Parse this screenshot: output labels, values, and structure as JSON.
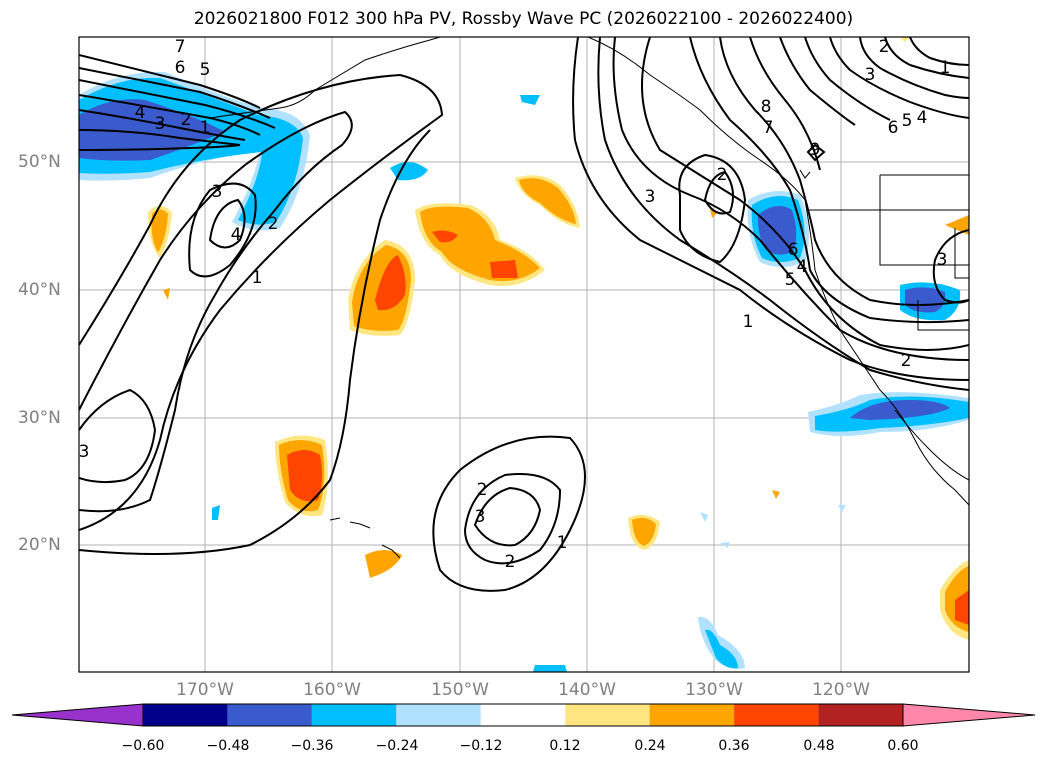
{
  "title": "2026021800 F012 300 hPa PV, Rossby Wave PC (2026022100 - 2026022400)",
  "lat_labels": [
    "50°N",
    "40°N",
    "30°N",
    "20°N"
  ],
  "lon_labels": [
    "170°W",
    "160°W",
    "150°W",
    "140°W",
    "130°W",
    "120°W"
  ],
  "colorbar": {
    "ticks": [
      "−0.60",
      "−0.48",
      "−0.36",
      "−0.24",
      "−0.12",
      "0.12",
      "0.24",
      "0.36",
      "0.48",
      "0.60"
    ],
    "colors": [
      "#9932cc",
      "#00008b",
      "#3a5bcd",
      "#00bfff",
      "#b0e2ff",
      "#ffffff",
      "#ffe680",
      "#ffa500",
      "#ff4500",
      "#b22222",
      "#ff88aa"
    ]
  },
  "contour_labels": [
    {
      "text": "7"
    },
    {
      "text": "6"
    },
    {
      "text": "5"
    },
    {
      "text": "4"
    },
    {
      "text": "3"
    },
    {
      "text": "2"
    },
    {
      "text": "1"
    },
    {
      "text": "3"
    },
    {
      "text": "4"
    },
    {
      "text": "2"
    },
    {
      "text": "1"
    },
    {
      "text": "3"
    },
    {
      "text": "3"
    },
    {
      "text": "2"
    },
    {
      "text": "2"
    },
    {
      "text": "1"
    },
    {
      "text": "3"
    },
    {
      "text": "2"
    },
    {
      "text": "8"
    },
    {
      "text": "7"
    },
    {
      "text": "6"
    },
    {
      "text": "5"
    },
    {
      "text": "4"
    },
    {
      "text": "9"
    },
    {
      "text": "2"
    },
    {
      "text": "3"
    },
    {
      "text": "6"
    },
    {
      "text": "5"
    },
    {
      "text": "4"
    },
    {
      "text": "1"
    },
    {
      "text": "1"
    },
    {
      "text": "2"
    },
    {
      "text": "3"
    }
  ]
}
